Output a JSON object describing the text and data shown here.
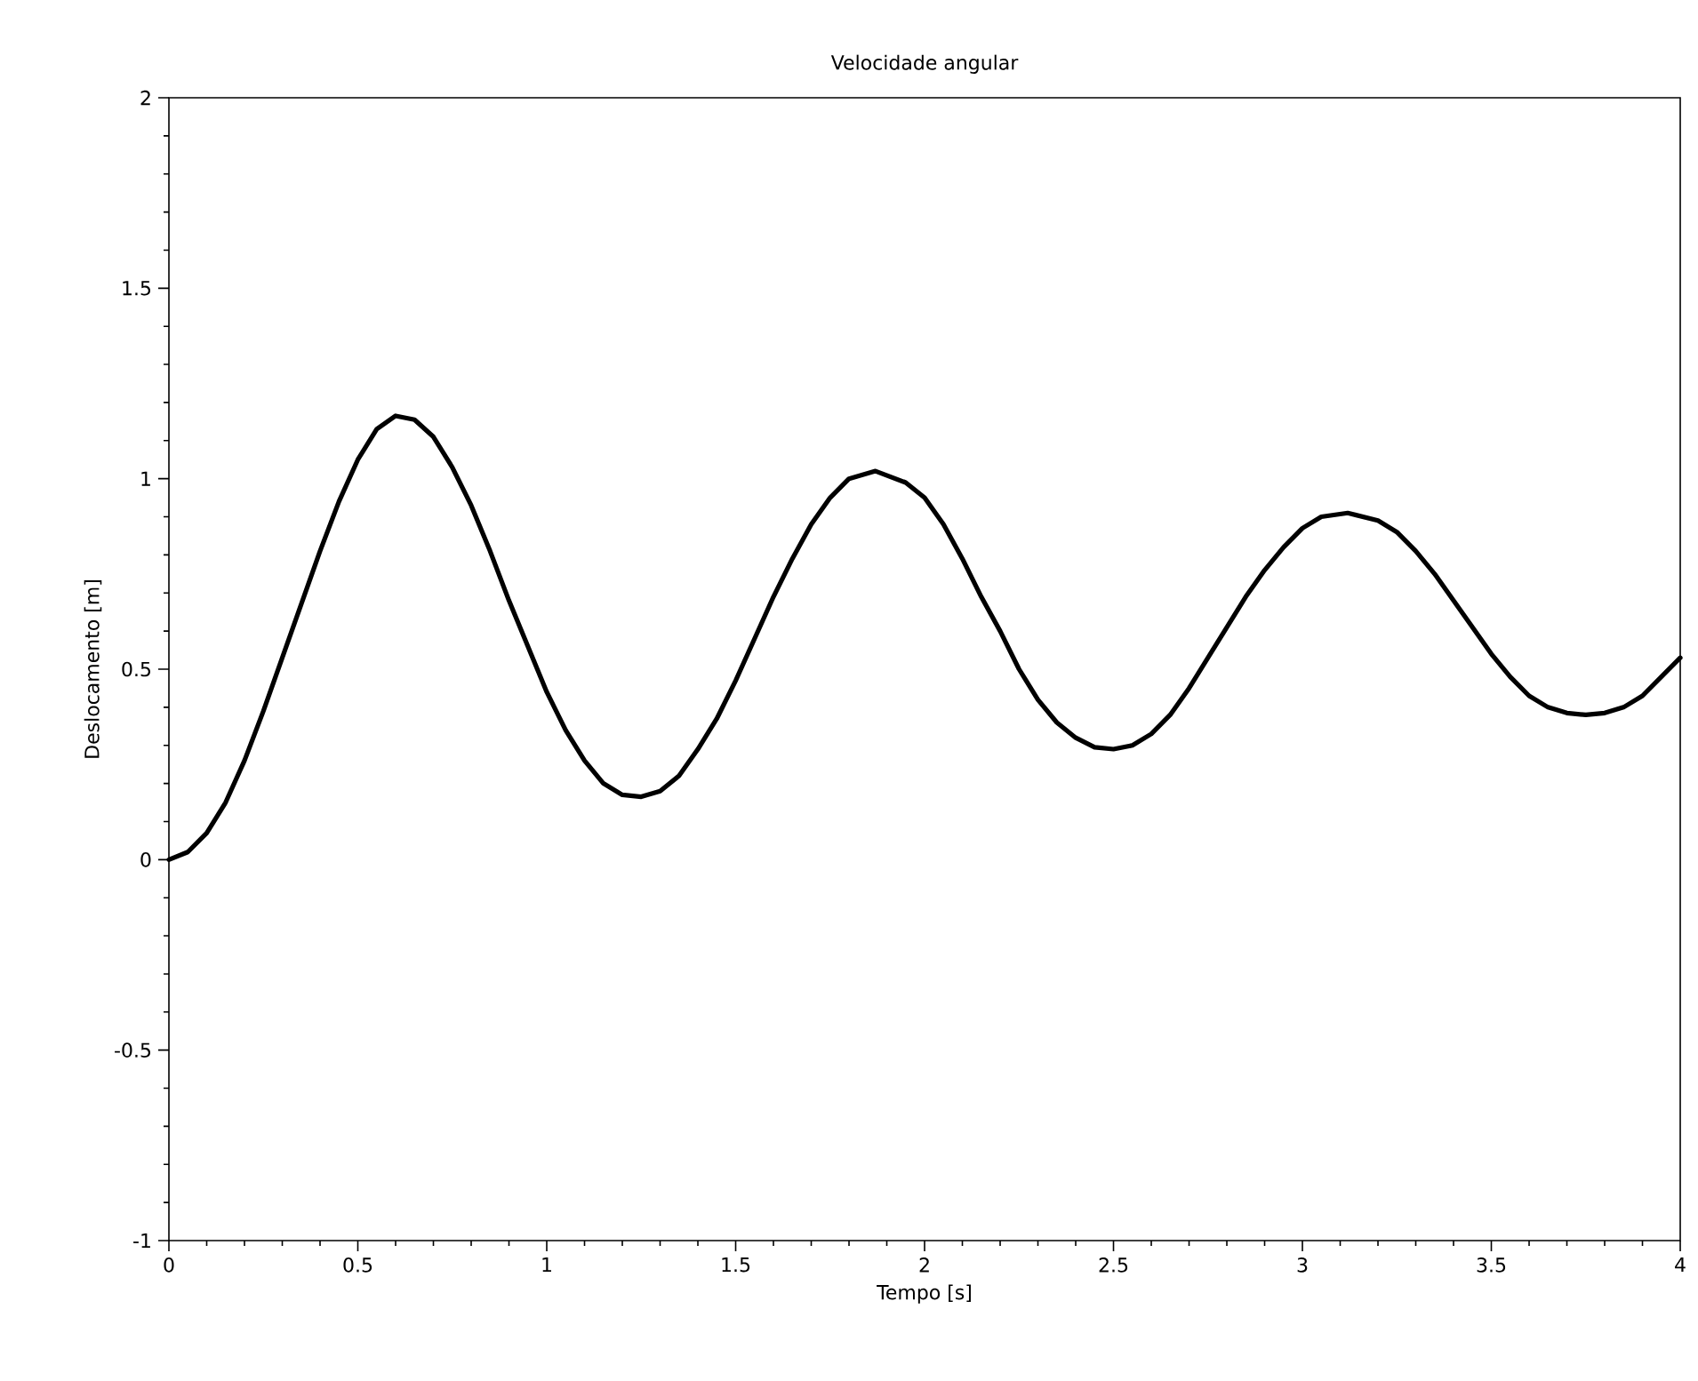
{
  "chart_data": {
    "type": "line",
    "title": "Velocidade angular",
    "xlabel": "Tempo [s]",
    "ylabel": "Deslocamento [m]",
    "xlim": [
      0,
      4
    ],
    "ylim": [
      -1,
      2
    ],
    "xticks": [
      0,
      0.5,
      1,
      1.5,
      2,
      2.5,
      3,
      3.5,
      4
    ],
    "yticks": [
      -1,
      -0.5,
      0,
      0.5,
      1,
      1.5,
      2
    ],
    "grid": false,
    "marker": "none",
    "line_style": "solid",
    "x": [
      0,
      0.05,
      0.1,
      0.15,
      0.2,
      0.25,
      0.3,
      0.35,
      0.4,
      0.45,
      0.5,
      0.55,
      0.6,
      0.65,
      0.7,
      0.75,
      0.8,
      0.85,
      0.9,
      0.95,
      1.0,
      1.05,
      1.1,
      1.15,
      1.2,
      1.25,
      1.3,
      1.35,
      1.4,
      1.45,
      1.5,
      1.55,
      1.6,
      1.65,
      1.7,
      1.75,
      1.8,
      1.87,
      1.95,
      2.0,
      2.05,
      2.1,
      2.15,
      2.2,
      2.25,
      2.3,
      2.35,
      2.4,
      2.45,
      2.5,
      2.55,
      2.6,
      2.65,
      2.7,
      2.75,
      2.8,
      2.85,
      2.9,
      2.95,
      3.0,
      3.05,
      3.12,
      3.2,
      3.25,
      3.3,
      3.35,
      3.4,
      3.45,
      3.5,
      3.55,
      3.6,
      3.65,
      3.7,
      3.75,
      3.8,
      3.85,
      3.9,
      3.95,
      4.0
    ],
    "series": [
      {
        "color": "#000000",
        "values": [
          0,
          0.02,
          0.07,
          0.15,
          0.26,
          0.39,
          0.53,
          0.67,
          0.81,
          0.94,
          1.05,
          1.13,
          1.165,
          1.155,
          1.11,
          1.03,
          0.93,
          0.81,
          0.68,
          0.56,
          0.44,
          0.34,
          0.26,
          0.2,
          0.17,
          0.165,
          0.18,
          0.22,
          0.29,
          0.37,
          0.47,
          0.58,
          0.69,
          0.79,
          0.88,
          0.95,
          1.0,
          1.02,
          0.99,
          0.95,
          0.88,
          0.79,
          0.69,
          0.6,
          0.5,
          0.42,
          0.36,
          0.32,
          0.295,
          0.29,
          0.3,
          0.33,
          0.38,
          0.45,
          0.53,
          0.61,
          0.69,
          0.76,
          0.82,
          0.87,
          0.9,
          0.91,
          0.89,
          0.86,
          0.81,
          0.75,
          0.68,
          0.61,
          0.54,
          0.48,
          0.43,
          0.4,
          0.385,
          0.38,
          0.385,
          0.4,
          0.43,
          0.48,
          0.53
        ]
      }
    ]
  }
}
